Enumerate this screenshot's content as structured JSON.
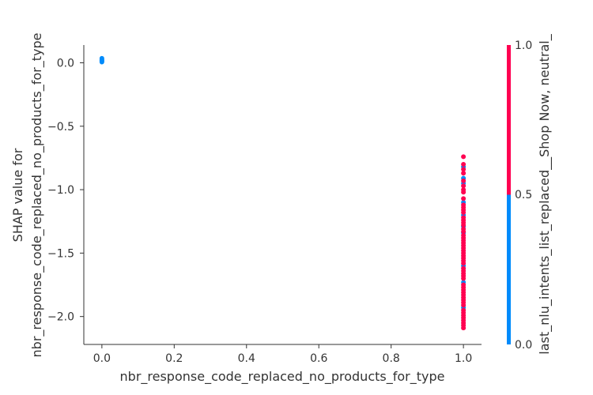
{
  "chart_data": {
    "type": "scatter",
    "xlabel": "nbr_response_code_replaced_no_products_for_type",
    "ylabel_lines": [
      "SHAP value for",
      "nbr_response_code_replaced_no_products_for_type"
    ],
    "xlim": [
      -0.05,
      1.05
    ],
    "ylim": [
      -2.22,
      0.14
    ],
    "xticks": [
      0.0,
      0.2,
      0.4,
      0.6,
      0.8,
      1.0
    ],
    "xtick_labels": [
      "0.0",
      "0.2",
      "0.4",
      "0.6",
      "0.8",
      "1.0"
    ],
    "yticks": [
      0.0,
      -0.5,
      -1.0,
      -1.5,
      -2.0
    ],
    "ytick_labels": [
      "0.0",
      "−0.5",
      "−1.0",
      "−1.5",
      "−2.0"
    ],
    "grid": false,
    "colorbar": {
      "label": "last_nlu_intents_list_replaced__Shop Now, neutral_",
      "ticks": [
        "0.0",
        "0.5",
        "1.0"
      ],
      "low_color": "#008bfb",
      "high_color": "#ff0051"
    },
    "series": [
      {
        "color_value": 0,
        "points": [
          [
            0.0,
            0.035
          ],
          [
            0.0,
            0.025
          ],
          [
            0.0,
            0.018
          ],
          [
            0.0,
            0.012
          ],
          [
            0.0,
            0.006
          ],
          [
            1.0,
            -0.82
          ],
          [
            1.0,
            -0.91
          ],
          [
            1.0,
            -0.95
          ],
          [
            1.0,
            -1.1
          ],
          [
            1.0,
            -1.2
          ],
          [
            1.0,
            -1.29
          ],
          [
            1.0,
            -1.34
          ],
          [
            1.0,
            -1.6
          ],
          [
            1.0,
            -1.73
          ],
          [
            1.0,
            -1.93
          ]
        ]
      },
      {
        "color_value": 1,
        "points": [
          [
            1.0,
            -0.74
          ],
          [
            1.0,
            -0.8
          ],
          [
            1.0,
            -0.84
          ],
          [
            1.0,
            -0.87
          ],
          [
            1.0,
            -0.93
          ],
          [
            1.0,
            -0.97
          ],
          [
            1.0,
            -1.0
          ],
          [
            1.0,
            -1.02
          ],
          [
            1.0,
            -1.07
          ],
          [
            1.0,
            -1.12
          ],
          [
            1.0,
            -1.14
          ],
          [
            1.0,
            -1.16
          ],
          [
            1.0,
            -1.18
          ],
          [
            1.0,
            -1.22
          ],
          [
            1.0,
            -1.24
          ],
          [
            1.0,
            -1.26
          ],
          [
            1.0,
            -1.28
          ],
          [
            1.0,
            -1.31
          ],
          [
            1.0,
            -1.33
          ],
          [
            1.0,
            -1.36
          ],
          [
            1.0,
            -1.38
          ],
          [
            1.0,
            -1.4
          ],
          [
            1.0,
            -1.42
          ],
          [
            1.0,
            -1.44
          ],
          [
            1.0,
            -1.46
          ],
          [
            1.0,
            -1.48
          ],
          [
            1.0,
            -1.5
          ],
          [
            1.0,
            -1.52
          ],
          [
            1.0,
            -1.54
          ],
          [
            1.0,
            -1.56
          ],
          [
            1.0,
            -1.58
          ],
          [
            1.0,
            -1.62
          ],
          [
            1.0,
            -1.64
          ],
          [
            1.0,
            -1.66
          ],
          [
            1.0,
            -1.68
          ],
          [
            1.0,
            -1.7
          ],
          [
            1.0,
            -1.75
          ],
          [
            1.0,
            -1.77
          ],
          [
            1.0,
            -1.79
          ],
          [
            1.0,
            -1.81
          ],
          [
            1.0,
            -1.83
          ],
          [
            1.0,
            -1.85
          ],
          [
            1.0,
            -1.87
          ],
          [
            1.0,
            -1.89
          ],
          [
            1.0,
            -1.91
          ],
          [
            1.0,
            -1.95
          ],
          [
            1.0,
            -1.97
          ],
          [
            1.0,
            -1.99
          ],
          [
            1.0,
            -2.01
          ],
          [
            1.0,
            -2.03
          ],
          [
            1.0,
            -2.05
          ],
          [
            1.0,
            -2.07
          ],
          [
            1.0,
            -2.09
          ]
        ]
      }
    ]
  }
}
